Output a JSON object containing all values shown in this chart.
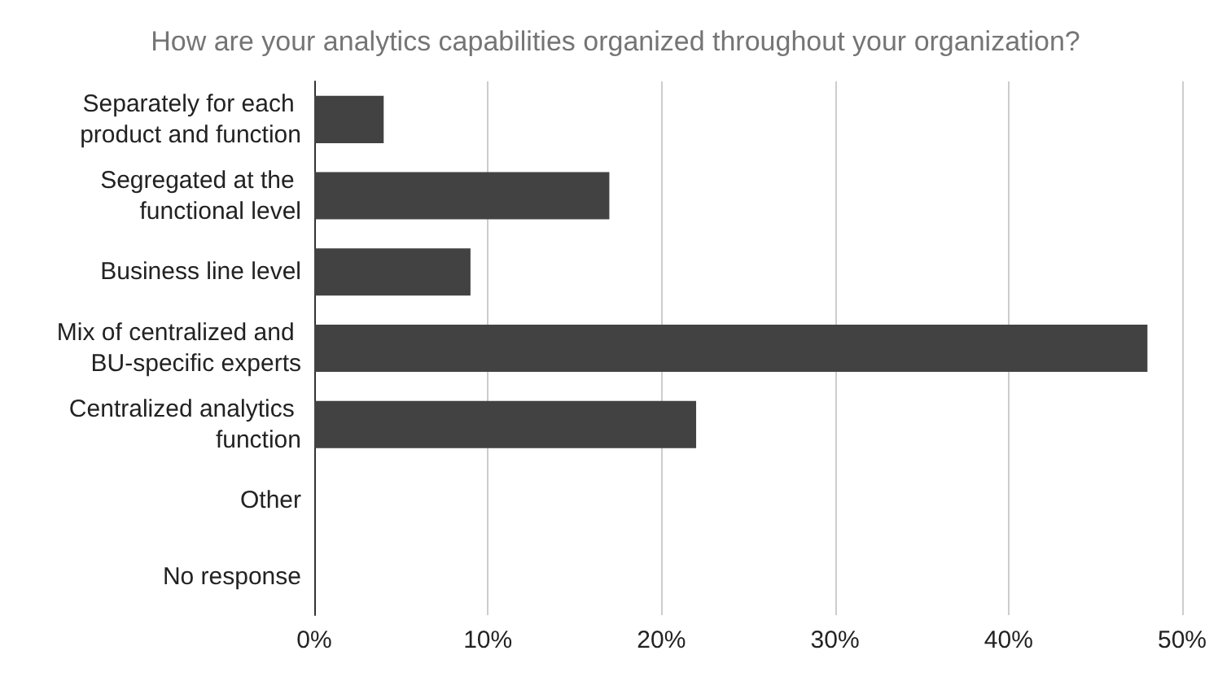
{
  "chart_data": {
    "type": "bar",
    "orientation": "horizontal",
    "title": "How are your analytics capabilities organized throughout your organization?",
    "categories": [
      "Separately for each product and function",
      "Segregated at the functional level",
      "Business line level",
      "Mix of centralized and BU-specific experts",
      "Centralized analytics function",
      "Other",
      "No response"
    ],
    "values": [
      4,
      17,
      9,
      48,
      22,
      0,
      0
    ],
    "color": "#424242",
    "xlim": [
      0,
      50
    ],
    "xticks": [
      {
        "value": 0,
        "label": "0%"
      },
      {
        "value": 10,
        "label": "10%"
      },
      {
        "value": 20,
        "label": "20%"
      },
      {
        "value": 30,
        "label": "30%"
      },
      {
        "value": 40,
        "label": "40%"
      },
      {
        "value": 50,
        "label": "50%"
      }
    ],
    "grid": "x"
  }
}
